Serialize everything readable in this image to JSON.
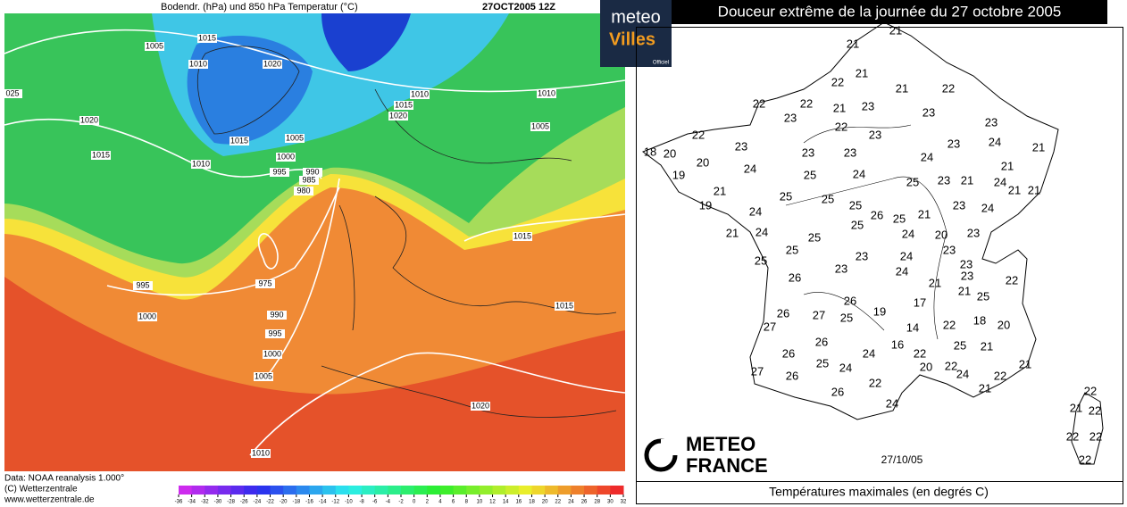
{
  "left_map": {
    "header": "Bodendr. (hPa) und 850 hPa Temperatur (°C)",
    "timestamp": "27OCT2005 12Z",
    "isobar_labels": [
      1015,
      1005,
      1010,
      1020,
      "025",
      1020,
      1010,
      1015,
      1020,
      1010,
      1005,
      1015,
      1005,
      1015,
      1000,
      1010,
      995,
      990,
      985,
      980,
      1015,
      975,
      995,
      1000,
      990,
      995,
      1000,
      1005,
      1015,
      1020,
      1010
    ],
    "colorbar_ticks": [
      -36,
      -34,
      -32,
      -30,
      -28,
      -26,
      -24,
      -22,
      -20,
      -18,
      -16,
      -14,
      -12,
      -10,
      -8,
      -6,
      -4,
      -2,
      0,
      2,
      4,
      6,
      8,
      10,
      12,
      14,
      16,
      18,
      20,
      22,
      24,
      26,
      28,
      30,
      32
    ],
    "footer": [
      "Data: NOAA reanalysis 1.000°",
      "(C) Wetterzentrale",
      "www.wetterzentrale.de"
    ]
  },
  "logo": {
    "line1": "meteo",
    "line2": "Villes",
    "line3": "Officiel"
  },
  "right_map": {
    "title": "Douceur extrême de la journée du 27 octobre 2005",
    "temperatures": [
      21,
      21,
      21,
      22,
      21,
      22,
      22,
      22,
      21,
      23,
      23,
      22,
      23,
      23,
      22,
      23,
      23,
      24,
      21,
      18,
      20,
      23,
      23,
      23,
      20,
      24,
      24,
      21,
      19,
      25,
      24,
      25,
      23,
      21,
      24,
      21,
      21,
      21,
      25,
      25,
      25,
      26,
      25,
      21,
      23,
      24,
      19,
      24,
      25,
      24,
      20,
      23,
      21,
      24,
      25,
      25,
      23,
      24,
      23,
      25,
      23,
      24,
      23,
      23,
      22,
      26,
      21,
      21,
      25,
      26,
      19,
      17,
      26,
      27,
      25,
      18,
      20,
      27,
      22,
      14,
      26,
      16,
      25,
      21,
      26,
      24,
      22,
      25,
      24,
      20,
      22,
      21,
      27,
      26,
      24,
      22,
      22,
      21,
      26,
      24,
      22,
      21,
      22,
      22,
      22,
      22
    ],
    "brand": [
      "METEO",
      "FRANCE"
    ],
    "date": "27/10/05",
    "caption": "Températures maximales (en degrés C)"
  }
}
